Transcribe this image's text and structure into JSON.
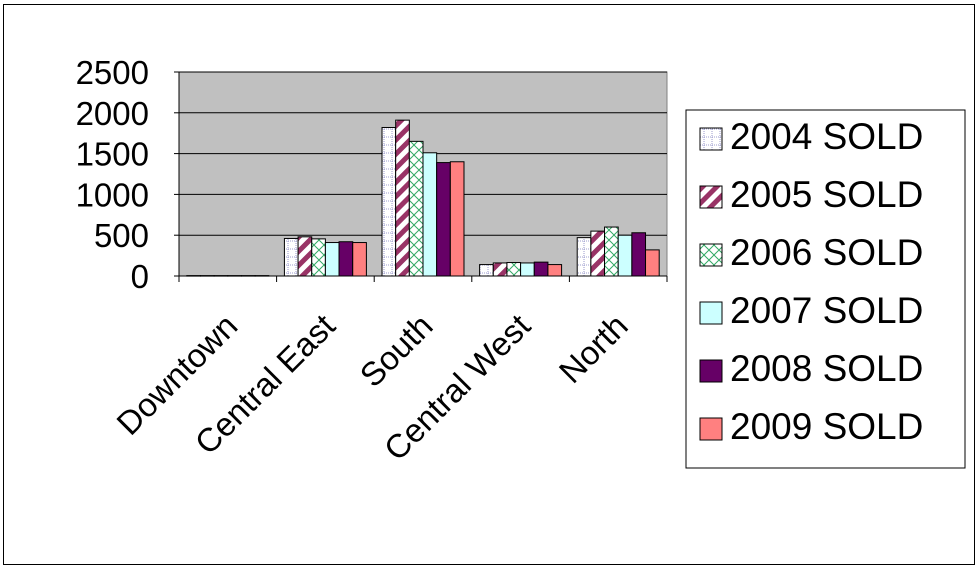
{
  "chart_data": {
    "type": "bar",
    "categories": [
      "Downtown",
      "Central East",
      "South",
      "Central West",
      "North"
    ],
    "series": [
      {
        "name": "2004 SOLD",
        "values": [
          5,
          460,
          1820,
          140,
          470
        ],
        "fill": "#ffffff",
        "pattern": "dotted-grid"
      },
      {
        "name": "2005 SOLD",
        "values": [
          5,
          480,
          1910,
          160,
          550
        ],
        "fill": "#993366",
        "pattern": "wide-diagonal"
      },
      {
        "name": "2006 SOLD",
        "values": [
          5,
          455,
          1650,
          165,
          600
        ],
        "fill": "#ffffff",
        "pattern": "green-weave"
      },
      {
        "name": "2007 SOLD",
        "values": [
          5,
          410,
          1510,
          160,
          500
        ],
        "fill": "#ccffff",
        "pattern": "solid"
      },
      {
        "name": "2008 SOLD",
        "values": [
          5,
          420,
          1390,
          170,
          530
        ],
        "fill": "#660066",
        "pattern": "solid"
      },
      {
        "name": "2009 SOLD",
        "values": [
          5,
          410,
          1400,
          140,
          320
        ],
        "fill": "#ff8080",
        "pattern": "solid"
      }
    ],
    "ylim": [
      0,
      2500
    ],
    "yticks": [
      "0",
      "500",
      "1000",
      "1500",
      "2000",
      "2500"
    ],
    "grid": true,
    "plot_background": "#c0c0c0",
    "legend_position": "right",
    "title": "",
    "xlabel": "",
    "ylabel": ""
  }
}
